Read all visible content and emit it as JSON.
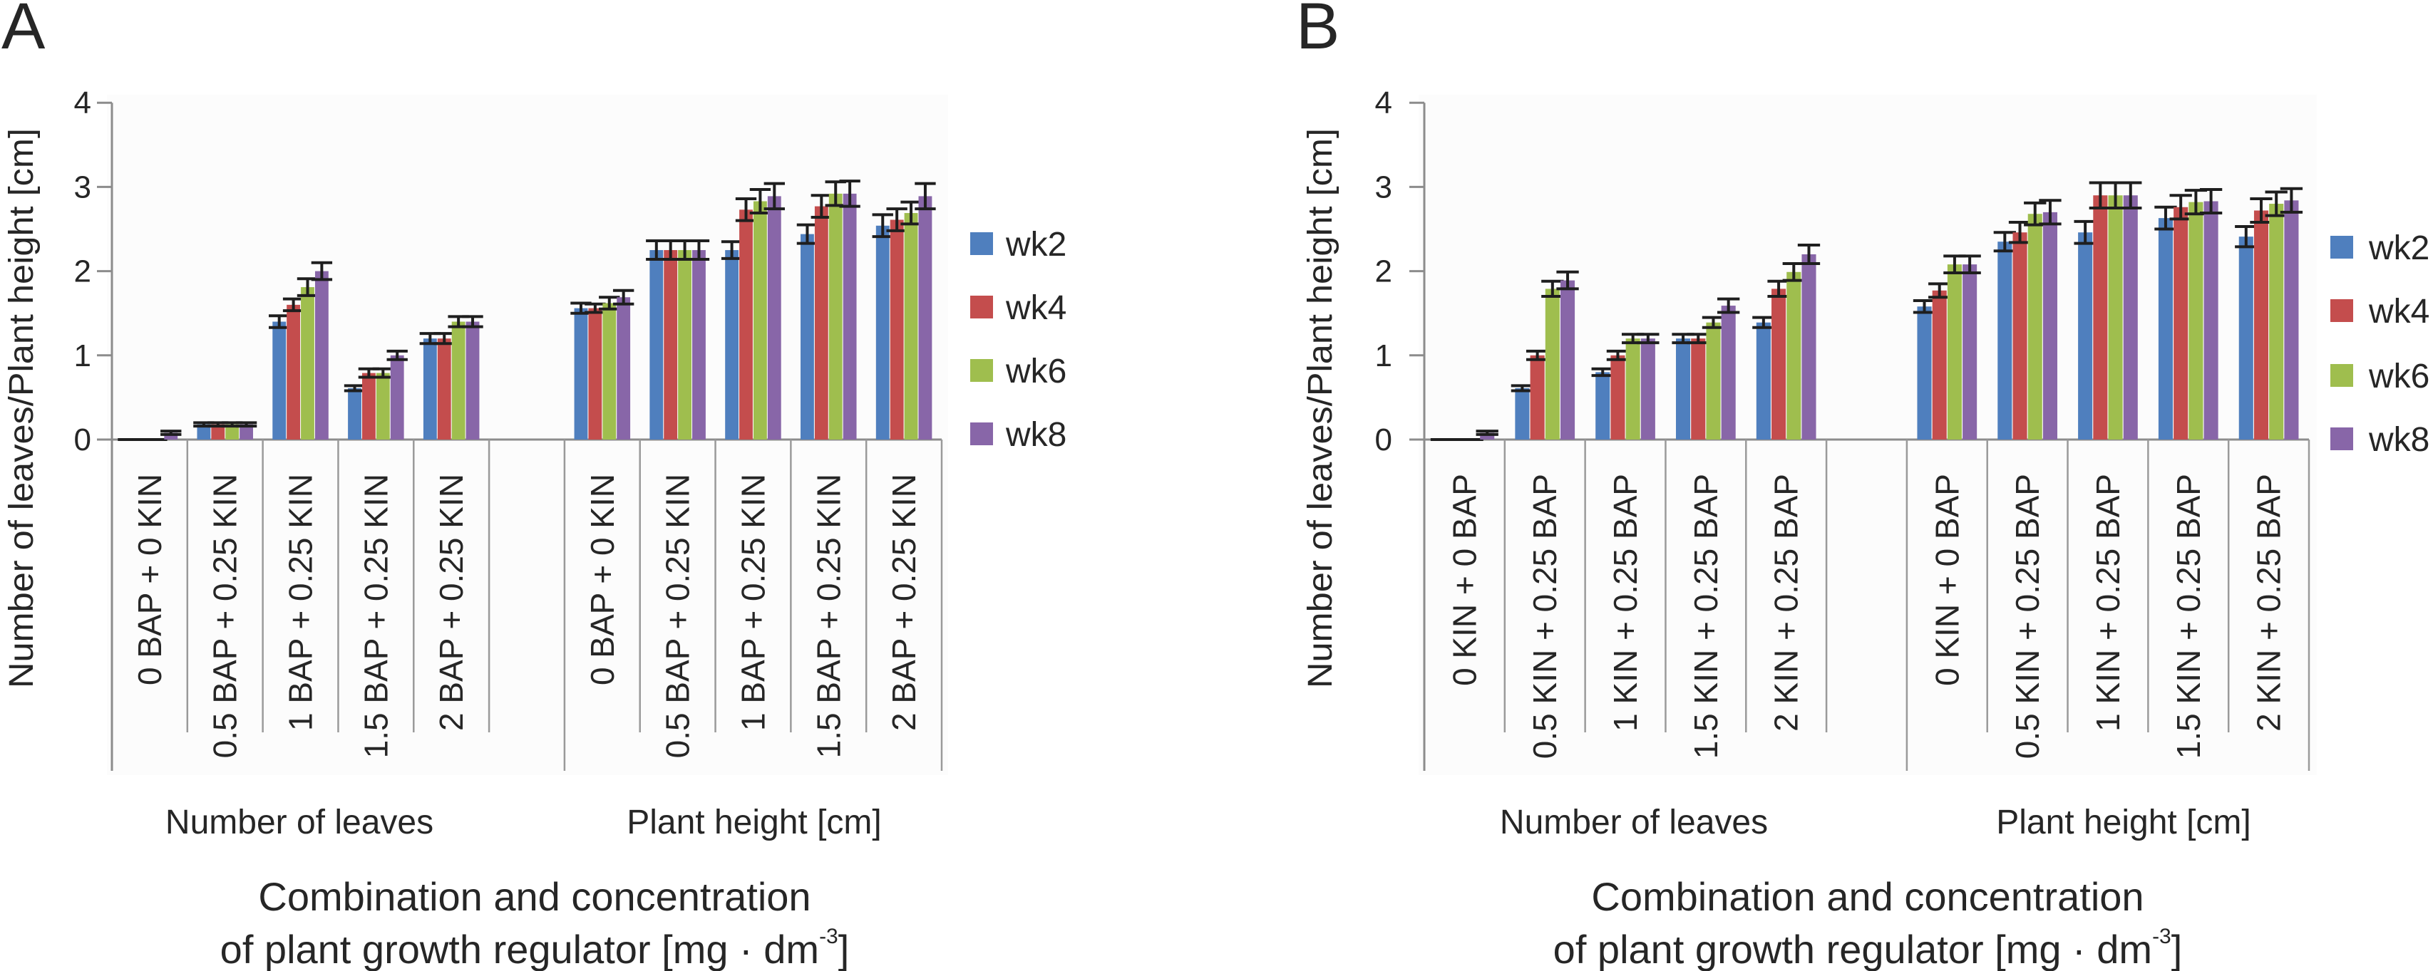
{
  "figure": {
    "colors": {
      "wk2": "#4F7FBE",
      "wk4": "#C44D4D",
      "wk6": "#9FBE4E",
      "wk8": "#8866A8",
      "text": "#262626",
      "axis": "#8c8c8c",
      "error_bar": "#1e1e1e"
    }
  },
  "chart_data": [
    {
      "panel": "A",
      "type": "bar",
      "title": "",
      "ylabel": "Number of leaves/Plant height [cm]",
      "xlabel_lines": [
        "Combination and concentration",
        "of plant growth regulator [mg · dm",
        "-3",
        "]"
      ],
      "xlabel": "Combination and concentration of plant growth regulator [mg · dm-3]",
      "ylim": [
        0,
        4
      ],
      "yticks": [
        "0",
        "1",
        "2",
        "3",
        "4"
      ],
      "grid": false,
      "legend": {
        "position": "right",
        "entries": [
          "wk2",
          "wk4",
          "wk6",
          "wk8"
        ]
      },
      "groups": [
        {
          "label": "Number of leaves",
          "categories": [
            "0 BAP + 0 KIN",
            "0.5 BAP + 0.25 KIN",
            "1 BAP + 0.25 KIN",
            "1.5 BAP + 0.25 KIN",
            "2 BAP + 0.25 KIN"
          ],
          "series": [
            {
              "name": "wk2",
              "values": [
                0,
                0.18,
                1.4,
                0.61,
                1.2
              ],
              "errors": [
                0,
                0.02,
                0.07,
                0.03,
                0.06
              ]
            },
            {
              "name": "wk4",
              "values": [
                0,
                0.18,
                1.6,
                0.79,
                1.2
              ],
              "errors": [
                0,
                0.02,
                0.07,
                0.05,
                0.06
              ]
            },
            {
              "name": "wk6",
              "values": [
                0,
                0.18,
                1.81,
                0.79,
                1.4
              ],
              "errors": [
                0,
                0.02,
                0.1,
                0.05,
                0.06
              ]
            },
            {
              "name": "wk8",
              "values": [
                0.08,
                0.18,
                2.0,
                1.0,
                1.4
              ],
              "errors": [
                0.02,
                0.02,
                0.1,
                0.05,
                0.06
              ]
            }
          ]
        },
        {
          "label": "Plant height [cm]",
          "categories": [
            "0 BAP + 0 KIN",
            "0.5 BAP + 0.25 KIN",
            "1 BAP + 0.25 KIN",
            "1.5 BAP + 0.25 KIN",
            "2 BAP + 0.25 KIN"
          ],
          "series": [
            {
              "name": "wk2",
              "values": [
                1.56,
                2.25,
                2.25,
                2.44,
                2.54
              ],
              "errors": [
                0.06,
                0.11,
                0.1,
                0.11,
                0.13
              ]
            },
            {
              "name": "wk4",
              "values": [
                1.56,
                2.25,
                2.73,
                2.77,
                2.61
              ],
              "errors": [
                0.05,
                0.11,
                0.13,
                0.13,
                0.13
              ]
            },
            {
              "name": "wk6",
              "values": [
                1.62,
                2.25,
                2.83,
                2.92,
                2.69
              ],
              "errors": [
                0.07,
                0.11,
                0.14,
                0.14,
                0.13
              ]
            },
            {
              "name": "wk8",
              "values": [
                1.69,
                2.25,
                2.89,
                2.92,
                2.89
              ],
              "errors": [
                0.08,
                0.11,
                0.15,
                0.15,
                0.15
              ]
            }
          ]
        }
      ]
    },
    {
      "panel": "B",
      "type": "bar",
      "title": "",
      "ylabel": "Number of leaves/Plant height [cm]",
      "xlabel_lines": [
        "Combination and concentration",
        "of plant growth regulator [mg · dm",
        "-3",
        "]"
      ],
      "xlabel": "Combination and concentration of plant growth regulator [mg · dm-3]",
      "ylim": [
        0,
        4
      ],
      "yticks": [
        "0",
        "1",
        "2",
        "3",
        "4"
      ],
      "grid": false,
      "legend": {
        "position": "right",
        "entries": [
          "wk2",
          "wk4",
          "wk6",
          "wk8"
        ]
      },
      "groups": [
        {
          "label": "Number of leaves",
          "categories": [
            "0 KIN + 0 BAP",
            "0.5 KIN + 0.25 BAP",
            "1 KIN + 0.25 BAP",
            "1.5 KIN + 0.25 BAP",
            "2 KIN + 0.25 BAP"
          ],
          "series": [
            {
              "name": "wk2",
              "values": [
                0,
                0.61,
                0.8,
                1.2,
                1.39
              ],
              "errors": [
                0,
                0.03,
                0.04,
                0.05,
                0.06
              ]
            },
            {
              "name": "wk4",
              "values": [
                0,
                1.0,
                1.0,
                1.2,
                1.79
              ],
              "errors": [
                0,
                0.05,
                0.05,
                0.05,
                0.09
              ]
            },
            {
              "name": "wk6",
              "values": [
                0,
                1.79,
                1.2,
                1.39,
                1.99
              ],
              "errors": [
                0,
                0.09,
                0.05,
                0.06,
                0.1
              ]
            },
            {
              "name": "wk8",
              "values": [
                0.08,
                1.89,
                1.2,
                1.59,
                2.2
              ],
              "errors": [
                0.02,
                0.1,
                0.05,
                0.08,
                0.11
              ]
            }
          ]
        },
        {
          "label": "Plant height [cm]",
          "categories": [
            "0 KIN + 0 BAP",
            "0.5 KIN + 0.25 BAP",
            "1 KIN + 0.25 BAP",
            "1.5 KIN + 0.25 BAP",
            "2 KIN + 0.25 BAP"
          ],
          "series": [
            {
              "name": "wk2",
              "values": [
                1.58,
                2.35,
                2.46,
                2.63,
                2.41
              ],
              "errors": [
                0.07,
                0.11,
                0.13,
                0.13,
                0.12
              ]
            },
            {
              "name": "wk4",
              "values": [
                1.77,
                2.46,
                2.9,
                2.76,
                2.72
              ],
              "errors": [
                0.08,
                0.12,
                0.15,
                0.14,
                0.14
              ]
            },
            {
              "name": "wk6",
              "values": [
                2.08,
                2.68,
                2.9,
                2.82,
                2.8
              ],
              "errors": [
                0.1,
                0.13,
                0.15,
                0.14,
                0.14
              ]
            },
            {
              "name": "wk8",
              "values": [
                2.08,
                2.7,
                2.9,
                2.83,
                2.84
              ],
              "errors": [
                0.1,
                0.14,
                0.15,
                0.14,
                0.14
              ]
            }
          ]
        }
      ]
    }
  ]
}
